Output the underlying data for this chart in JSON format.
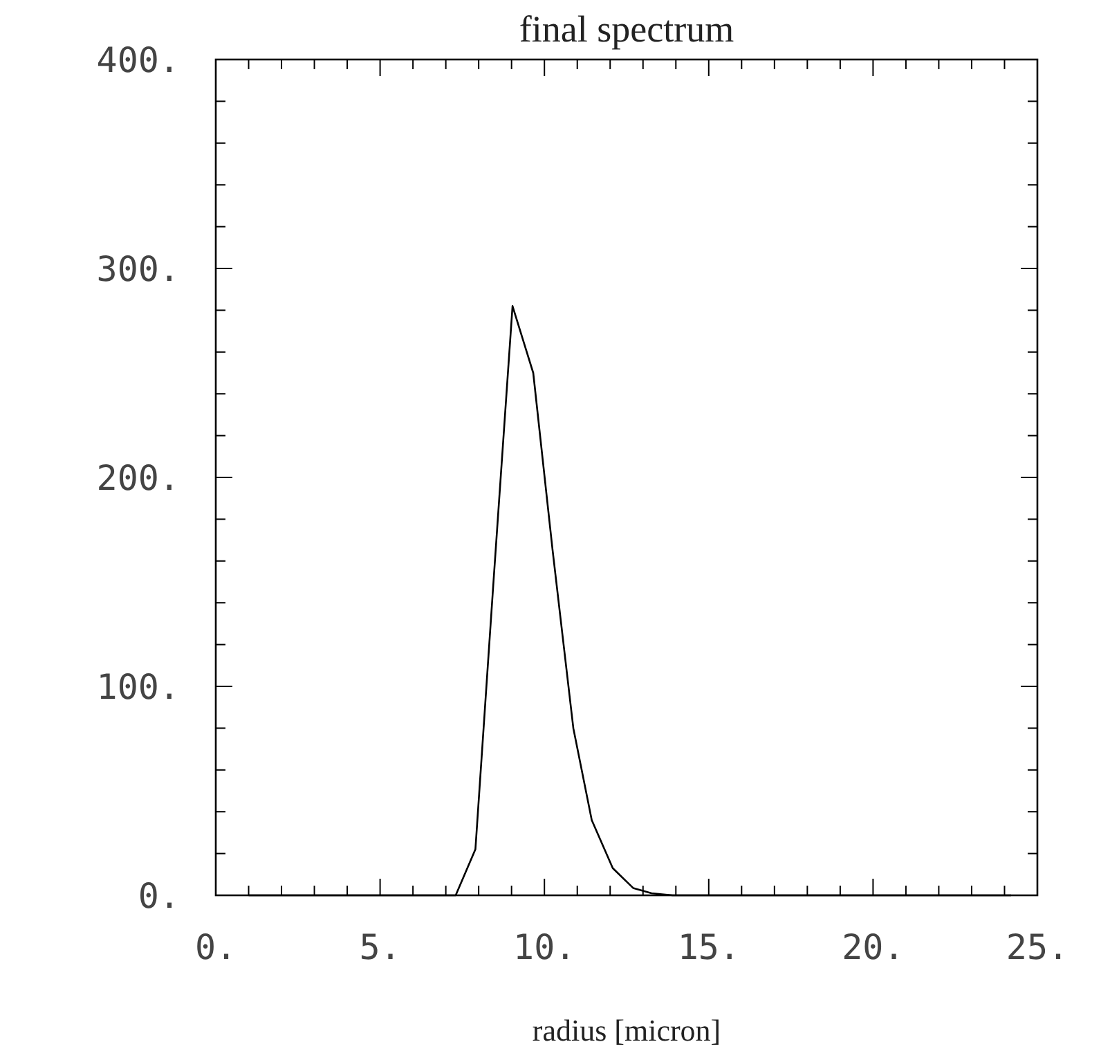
{
  "chart_data": {
    "type": "line",
    "title": "final spectrum",
    "xlabel": "radius [micron]",
    "series": [
      {
        "color": "#000000",
        "x": [
          1,
          7.3,
          7.9,
          8.45,
          9.03,
          9.66,
          10.25,
          10.88,
          11.44,
          12.08,
          12.7,
          13.26,
          13.9,
          24.2
        ],
        "values": [
          0,
          0,
          22,
          150,
          282,
          250,
          165,
          80,
          36,
          13,
          3.5,
          1,
          0,
          0
        ]
      }
    ],
    "xlim": [
      0,
      25
    ],
    "ylim": [
      0,
      400
    ],
    "xticks": [
      {
        "value": 0,
        "label": "0."
      },
      {
        "value": 1,
        "label": null
      },
      {
        "value": 2,
        "label": null
      },
      {
        "value": 3,
        "label": null
      },
      {
        "value": 4,
        "label": null
      },
      {
        "value": 5,
        "label": "5."
      },
      {
        "value": 6,
        "label": null
      },
      {
        "value": 7,
        "label": null
      },
      {
        "value": 8,
        "label": null
      },
      {
        "value": 9,
        "label": null
      },
      {
        "value": 10,
        "label": "10."
      },
      {
        "value": 11,
        "label": null
      },
      {
        "value": 12,
        "label": null
      },
      {
        "value": 13,
        "label": null
      },
      {
        "value": 14,
        "label": null
      },
      {
        "value": 15,
        "label": "15."
      },
      {
        "value": 16,
        "label": null
      },
      {
        "value": 17,
        "label": null
      },
      {
        "value": 18,
        "label": null
      },
      {
        "value": 19,
        "label": null
      },
      {
        "value": 20,
        "label": "20."
      },
      {
        "value": 21,
        "label": null
      },
      {
        "value": 22,
        "label": null
      },
      {
        "value": 23,
        "label": null
      },
      {
        "value": 24,
        "label": null
      },
      {
        "value": 25,
        "label": "25."
      }
    ],
    "yticks": [
      {
        "value": 0,
        "label": "0."
      },
      {
        "value": 20,
        "label": null
      },
      {
        "value": 40,
        "label": null
      },
      {
        "value": 60,
        "label": null
      },
      {
        "value": 80,
        "label": null
      },
      {
        "value": 100,
        "label": "100."
      },
      {
        "value": 120,
        "label": null
      },
      {
        "value": 140,
        "label": null
      },
      {
        "value": 160,
        "label": null
      },
      {
        "value": 180,
        "label": null
      },
      {
        "value": 200,
        "label": "200."
      },
      {
        "value": 220,
        "label": null
      },
      {
        "value": 240,
        "label": null
      },
      {
        "value": 260,
        "label": null
      },
      {
        "value": 280,
        "label": null
      },
      {
        "value": 300,
        "label": "300."
      },
      {
        "value": 320,
        "label": null
      },
      {
        "value": 340,
        "label": null
      },
      {
        "value": 360,
        "label": null
      },
      {
        "value": 380,
        "label": null
      },
      {
        "value": 400,
        "label": "400."
      }
    ],
    "grid": false,
    "marker": "none",
    "line_style": "solid"
  }
}
